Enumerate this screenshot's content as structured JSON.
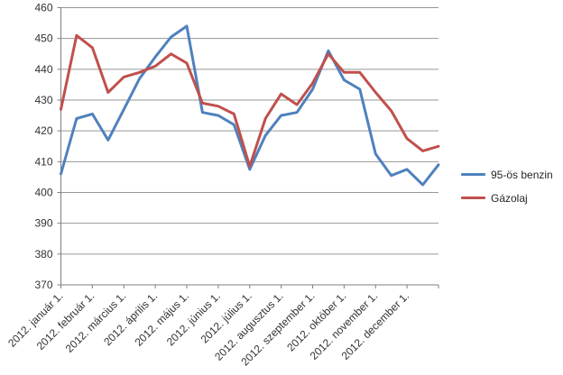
{
  "chart_data": {
    "type": "line",
    "grid": "horizontal",
    "legend_position": "right",
    "background": "#ffffff",
    "colors": {
      "gridline": "#969696",
      "axis": "#7f7f7f",
      "tick_text": "#333333"
    },
    "y_axis": {
      "min": 370,
      "max": 460,
      "tick_step": 10,
      "tick_labels": [
        "370",
        "380",
        "390",
        "400",
        "410",
        "420",
        "430",
        "440",
        "450",
        "460"
      ]
    },
    "x_axis": {
      "tick_labels": [
        "2012. január 1.",
        "2012. február 1.",
        "2012. március 1.",
        "2012. április 1.",
        "2012. május 1.",
        "2012. június 1.",
        "2012. július 1.",
        "2012. augusztus 1.",
        "2012. szeptember 1.",
        "2012. október 1.",
        "2012. november 1.",
        "2012. december 1."
      ],
      "label_rotation_deg": 45,
      "n_points": 25,
      "points_per_month": 2,
      "note": "two data points per month (1st and 16th), last point at year end"
    },
    "series": [
      {
        "name": "95-ös benzin",
        "color": "#4F81BD",
        "values": [
          406,
          424,
          425.5,
          417,
          427,
          437,
          444,
          450.5,
          454,
          426,
          425,
          422,
          407.5,
          418.5,
          425,
          426,
          433.5,
          446,
          436.5,
          433.5,
          412.5,
          405.5,
          407.5,
          402.5,
          409
        ]
      },
      {
        "name": "Gázolaj",
        "color": "#C0504D",
        "values": [
          427,
          451,
          447,
          432.5,
          437.5,
          439,
          441,
          445,
          442,
          429,
          428,
          425.5,
          408.5,
          424,
          432,
          428.5,
          435.5,
          445,
          439,
          439,
          432.5,
          426.5,
          417.5,
          413.5,
          415
        ]
      }
    ]
  }
}
